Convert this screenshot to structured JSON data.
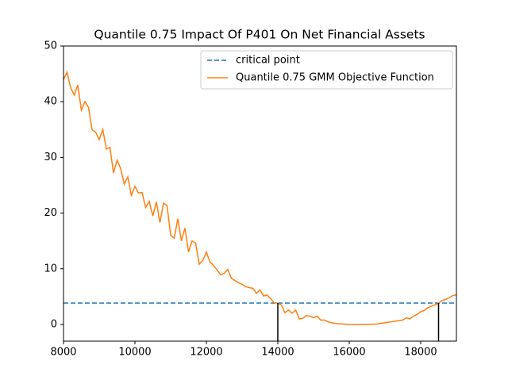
{
  "chart_data": {
    "type": "line",
    "title": "Quantile 0.75 Impact Of P401 On Net Financial Assets",
    "x": [
      8000,
      8100,
      8200,
      8300,
      8400,
      8500,
      8600,
      8700,
      8800,
      8900,
      9000,
      9100,
      9200,
      9300,
      9400,
      9500,
      9600,
      9700,
      9800,
      9900,
      10000,
      10100,
      10200,
      10300,
      10400,
      10500,
      10600,
      10700,
      10800,
      10900,
      11000,
      11100,
      11200,
      11300,
      11400,
      11500,
      11600,
      11700,
      11800,
      11900,
      12000,
      12100,
      12200,
      12300,
      12400,
      12500,
      12600,
      12700,
      12800,
      12900,
      13000,
      13100,
      13200,
      13300,
      13400,
      13500,
      13600,
      13700,
      13800,
      13900,
      14000,
      14100,
      14200,
      14300,
      14400,
      14500,
      14600,
      14700,
      14800,
      14900,
      15000,
      15100,
      15200,
      15300,
      15400,
      15500,
      15600,
      15700,
      15800,
      15900,
      16000,
      16100,
      16200,
      16300,
      16400,
      16500,
      16600,
      16700,
      16800,
      16900,
      17000,
      17100,
      17200,
      17300,
      17400,
      17500,
      17600,
      17700,
      17800,
      17900,
      18000,
      18100,
      18200,
      18300,
      18400,
      18500,
      18600,
      18700,
      18800,
      18900,
      19000
    ],
    "series": [
      {
        "name": "critical point",
        "color": "#1f77b4",
        "dashed": true,
        "value": 3.84
      },
      {
        "name": "Quantile 0.75 GMM Objective Function",
        "color": "#ff7f0e",
        "dashed": false,
        "values": [
          44,
          45.3,
          42.5,
          41.2,
          43,
          38.5,
          40,
          39,
          35,
          34.5,
          33.2,
          35,
          31.5,
          31.8,
          27.2,
          29.5,
          28,
          25.2,
          26.5,
          23.2,
          24.8,
          23.6,
          23.7,
          21,
          22.1,
          19.5,
          22,
          18.3,
          21.8,
          21.3,
          16,
          15.5,
          19,
          15,
          17.3,
          13,
          15,
          14.6,
          10.8,
          11.5,
          13,
          11.2,
          10.6,
          9.8,
          8.9,
          9.2,
          9.9,
          8.3,
          7.9,
          7.5,
          7.2,
          6.8,
          6.6,
          6.5,
          5.6,
          6.2,
          5.1,
          5.3,
          4.6,
          3.9,
          3.8,
          3.5,
          2.1,
          2.6,
          2.0,
          2.6,
          1.0,
          1.1,
          1.6,
          1.5,
          1.2,
          1.5,
          0.8,
          0.8,
          0.5,
          0.3,
          0.2,
          0.1,
          0.1,
          0.05,
          0,
          0,
          0,
          0,
          0,
          0,
          0.05,
          0.05,
          0.1,
          0.2,
          0.3,
          0.4,
          0.5,
          0.6,
          0.7,
          0.8,
          1.2,
          1.0,
          1.5,
          1.8,
          2.3,
          2.5,
          3.0,
          3.3,
          3.5,
          3.8,
          4.3,
          4.5,
          4.8,
          5.2,
          5.3
        ]
      }
    ],
    "bounds": [
      14000,
      18500
    ],
    "bounds_color": "#000000",
    "xlim": [
      8000,
      19000
    ],
    "xticks": [
      8000,
      10000,
      12000,
      14000,
      16000,
      18000
    ],
    "ylim": [
      -3,
      50
    ],
    "yticks": [
      0,
      10,
      20,
      30,
      40,
      50
    ],
    "legend": "upper right"
  }
}
